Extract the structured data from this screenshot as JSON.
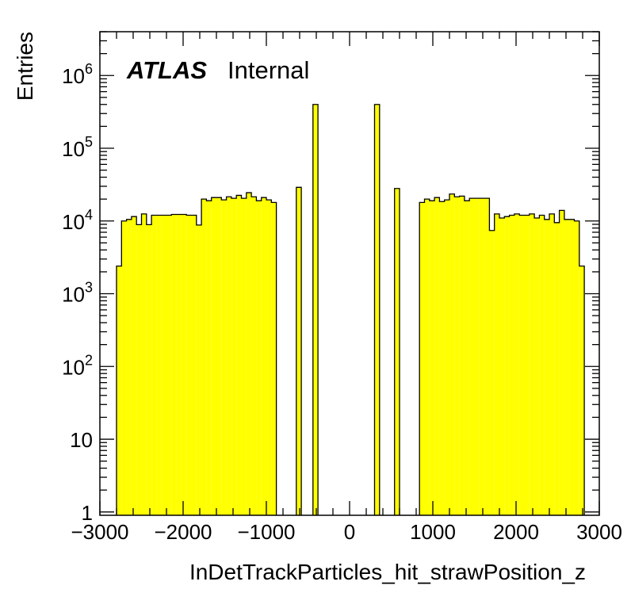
{
  "chart_data": {
    "type": "bar",
    "histogram": true,
    "title": "",
    "xlabel": "InDetTrackParticles_hit_strawPosition_z",
    "ylabel": "Entries",
    "label_bold": "ATLAS",
    "label_plain": "Internal",
    "xlim": [
      -3000,
      3000
    ],
    "ylim": [
      0.9,
      4000000
    ],
    "yscale": "log",
    "fill_color": "#ffff00",
    "line_color": "#000000",
    "x_tick_labels": [
      "−3000",
      "−2000",
      "−1000",
      "0",
      "1000",
      "2000",
      "3000"
    ],
    "x_tick_values": [
      -3000,
      -2000,
      -1000,
      0,
      1000,
      2000,
      3000
    ],
    "y_tick_labels": [
      {
        "base": "1",
        "exp": ""
      },
      {
        "base": "10",
        "exp": ""
      },
      {
        "base": "10",
        "exp": "2"
      },
      {
        "base": "10",
        "exp": "3"
      },
      {
        "base": "10",
        "exp": "4"
      },
      {
        "base": "10",
        "exp": "5"
      },
      {
        "base": "10",
        "exp": "6"
      }
    ],
    "y_tick_values": [
      1,
      10,
      100,
      1000,
      10000,
      100000,
      1000000
    ],
    "bins": [
      {
        "x0": -2800,
        "x1": -2740,
        "y": 2400
      },
      {
        "x0": -2740,
        "x1": -2680,
        "y": 10000
      },
      {
        "x0": -2680,
        "x1": -2620,
        "y": 10500
      },
      {
        "x0": -2620,
        "x1": -2560,
        "y": 11500
      },
      {
        "x0": -2560,
        "x1": -2500,
        "y": 8900
      },
      {
        "x0": -2500,
        "x1": -2440,
        "y": 12500
      },
      {
        "x0": -2440,
        "x1": -2380,
        "y": 8900
      },
      {
        "x0": -2380,
        "x1": -2320,
        "y": 12000
      },
      {
        "x0": -2320,
        "x1": -2260,
        "y": 12000
      },
      {
        "x0": -2260,
        "x1": -2200,
        "y": 12000
      },
      {
        "x0": -2200,
        "x1": -2140,
        "y": 12000
      },
      {
        "x0": -2140,
        "x1": -2080,
        "y": 12300
      },
      {
        "x0": -2080,
        "x1": -2020,
        "y": 12300
      },
      {
        "x0": -2020,
        "x1": -1960,
        "y": 12300
      },
      {
        "x0": -1960,
        "x1": -1900,
        "y": 12000
      },
      {
        "x0": -1900,
        "x1": -1840,
        "y": 12000
      },
      {
        "x0": -1840,
        "x1": -1780,
        "y": 8800
      },
      {
        "x0": -1780,
        "x1": -1720,
        "y": 20000
      },
      {
        "x0": -1720,
        "x1": -1660,
        "y": 19000
      },
      {
        "x0": -1660,
        "x1": -1600,
        "y": 21000
      },
      {
        "x0": -1600,
        "x1": -1540,
        "y": 21000
      },
      {
        "x0": -1540,
        "x1": -1480,
        "y": 19500
      },
      {
        "x0": -1480,
        "x1": -1420,
        "y": 21500
      },
      {
        "x0": -1420,
        "x1": -1360,
        "y": 20500
      },
      {
        "x0": -1360,
        "x1": -1300,
        "y": 22500
      },
      {
        "x0": -1300,
        "x1": -1240,
        "y": 20500
      },
      {
        "x0": -1240,
        "x1": -1180,
        "y": 24500
      },
      {
        "x0": -1180,
        "x1": -1120,
        "y": 21500
      },
      {
        "x0": -1120,
        "x1": -1060,
        "y": 19000
      },
      {
        "x0": -1060,
        "x1": -1000,
        "y": 21000
      },
      {
        "x0": -1000,
        "x1": -940,
        "y": 19500
      },
      {
        "x0": -940,
        "x1": -880,
        "y": 18000
      },
      {
        "x0": -640,
        "x1": -580,
        "y": 29000
      },
      {
        "x0": -440,
        "x1": -380,
        "y": 400000
      },
      {
        "x0": 300,
        "x1": 360,
        "y": 400000
      },
      {
        "x0": 540,
        "x1": 600,
        "y": 28000
      },
      {
        "x0": 840,
        "x1": 900,
        "y": 18000
      },
      {
        "x0": 900,
        "x1": 960,
        "y": 20000
      },
      {
        "x0": 960,
        "x1": 1020,
        "y": 19000
      },
      {
        "x0": 1020,
        "x1": 1080,
        "y": 21000
      },
      {
        "x0": 1080,
        "x1": 1140,
        "y": 18500
      },
      {
        "x0": 1140,
        "x1": 1200,
        "y": 19500
      },
      {
        "x0": 1200,
        "x1": 1260,
        "y": 23500
      },
      {
        "x0": 1260,
        "x1": 1320,
        "y": 21500
      },
      {
        "x0": 1320,
        "x1": 1380,
        "y": 22000
      },
      {
        "x0": 1380,
        "x1": 1440,
        "y": 19000
      },
      {
        "x0": 1440,
        "x1": 1500,
        "y": 20500
      },
      {
        "x0": 1500,
        "x1": 1560,
        "y": 20500
      },
      {
        "x0": 1560,
        "x1": 1620,
        "y": 20500
      },
      {
        "x0": 1620,
        "x1": 1680,
        "y": 20500
      },
      {
        "x0": 1680,
        "x1": 1740,
        "y": 7400
      },
      {
        "x0": 1740,
        "x1": 1800,
        "y": 12500
      },
      {
        "x0": 1800,
        "x1": 1860,
        "y": 11000
      },
      {
        "x0": 1860,
        "x1": 1920,
        "y": 11500
      },
      {
        "x0": 1920,
        "x1": 1980,
        "y": 12000
      },
      {
        "x0": 1980,
        "x1": 2040,
        "y": 12500
      },
      {
        "x0": 2040,
        "x1": 2100,
        "y": 12000
      },
      {
        "x0": 2100,
        "x1": 2160,
        "y": 12000
      },
      {
        "x0": 2160,
        "x1": 2220,
        "y": 12500
      },
      {
        "x0": 2220,
        "x1": 2280,
        "y": 11000
      },
      {
        "x0": 2280,
        "x1": 2340,
        "y": 12000
      },
      {
        "x0": 2340,
        "x1": 2400,
        "y": 10500
      },
      {
        "x0": 2400,
        "x1": 2460,
        "y": 12500
      },
      {
        "x0": 2460,
        "x1": 2520,
        "y": 9500
      },
      {
        "x0": 2520,
        "x1": 2580,
        "y": 14000
      },
      {
        "x0": 2580,
        "x1": 2640,
        "y": 10500
      },
      {
        "x0": 2640,
        "x1": 2700,
        "y": 10500
      },
      {
        "x0": 2700,
        "x1": 2760,
        "y": 10000
      },
      {
        "x0": 2760,
        "x1": 2820,
        "y": 2400
      }
    ]
  }
}
